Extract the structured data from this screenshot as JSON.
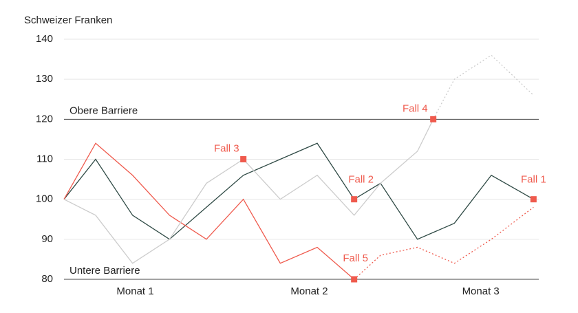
{
  "chart_data": {
    "type": "line",
    "y_axis_label": "Schweizer Franken",
    "xlim": [
      0,
      90
    ],
    "xticks": [
      {
        "value": 13.5,
        "label": "Monat 1"
      },
      {
        "value": 46.5,
        "label": "Monat 2"
      },
      {
        "value": 79,
        "label": "Monat 3"
      }
    ],
    "ylim": [
      80,
      140
    ],
    "yticks": [
      80,
      90,
      100,
      110,
      120,
      130,
      140
    ],
    "grid": true,
    "series": [
      {
        "color": "#2f4a45",
        "dashed": false,
        "x": [
          0,
          6,
          13,
          20,
          27,
          34,
          41,
          48,
          55,
          60,
          67,
          74,
          81,
          89
        ],
        "values": [
          100,
          110,
          96,
          90,
          98,
          106,
          110,
          114,
          100,
          104,
          90,
          94,
          106,
          100
        ]
      },
      {
        "color": "#ef5a4d",
        "dashed": false,
        "x": [
          0,
          6,
          13,
          20,
          27,
          34,
          41,
          48,
          55
        ],
        "values": [
          100,
          114,
          106,
          96,
          90,
          100,
          84,
          88,
          80
        ]
      },
      {
        "color": "#ef5a4d",
        "dashed": true,
        "x": [
          55,
          60,
          67,
          74,
          81,
          89
        ],
        "values": [
          80,
          86,
          88,
          84,
          90,
          98
        ]
      },
      {
        "color": "#cccccc",
        "dashed": false,
        "x": [
          0,
          6,
          13,
          20,
          27,
          34,
          41,
          48,
          55,
          60,
          67,
          70
        ],
        "values": [
          100,
          96,
          84,
          90,
          104,
          110,
          100,
          106,
          96,
          104,
          112,
          120
        ]
      },
      {
        "color": "#cccccc",
        "dashed": true,
        "x": [
          70,
          74,
          81,
          89
        ],
        "values": [
          120,
          130,
          136,
          126
        ]
      }
    ],
    "barriers": [
      {
        "label": "Obere Barriere",
        "value": 120
      },
      {
        "label": "Untere Barriere",
        "value": 80
      }
    ],
    "marker_color": "#ef5a4d",
    "annotations": [
      {
        "text": "Fall 1",
        "x": 89,
        "y": 100
      },
      {
        "text": "Fall 2",
        "x": 55,
        "y": 100
      },
      {
        "text": "Fall 3",
        "x": 34,
        "y": 110
      },
      {
        "text": "Fall 4",
        "x": 70,
        "y": 120
      },
      {
        "text": "Fall 5",
        "x": 55,
        "y": 80
      }
    ]
  }
}
